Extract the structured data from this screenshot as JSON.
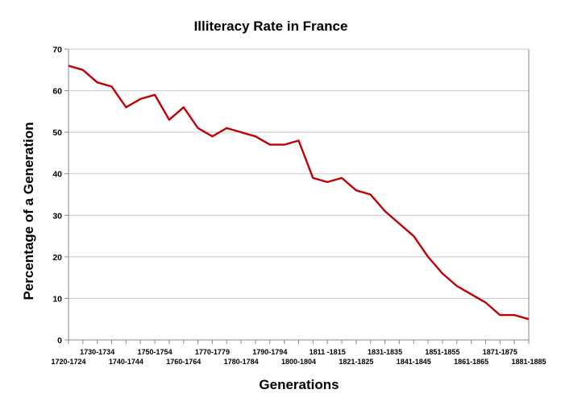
{
  "chart_data": {
    "type": "line",
    "title": "Illiteracy Rate in France",
    "xlabel": "Generations",
    "ylabel": "Percentage of a Generation",
    "ylim": [
      0,
      70
    ],
    "yticks": [
      0,
      10,
      20,
      30,
      40,
      50,
      60,
      70
    ],
    "grid": true,
    "legend": "none",
    "x_tick_labels_upper": [
      "1730-1734",
      "1750-1754",
      "1770-1779",
      "1790-1794",
      "1811 -1815",
      "1831-1835",
      "1851-1855",
      "1871-1875"
    ],
    "x_tick_labels_lower": [
      "1720-1724",
      "1740-1744",
      "1760-1764",
      "1780-1784",
      "1800-1804",
      "1821-1825",
      "1841-1845",
      "1861-1865",
      "1881-1885"
    ],
    "series": [
      {
        "color": "#c00000",
        "values": [
          66,
          65,
          62,
          61,
          56,
          58,
          59,
          53,
          56,
          51,
          49,
          51,
          50,
          49,
          47,
          47,
          48,
          39,
          38,
          39,
          36,
          35,
          31,
          28,
          25,
          20,
          16,
          13,
          11,
          9,
          6,
          6,
          5
        ]
      }
    ]
  }
}
